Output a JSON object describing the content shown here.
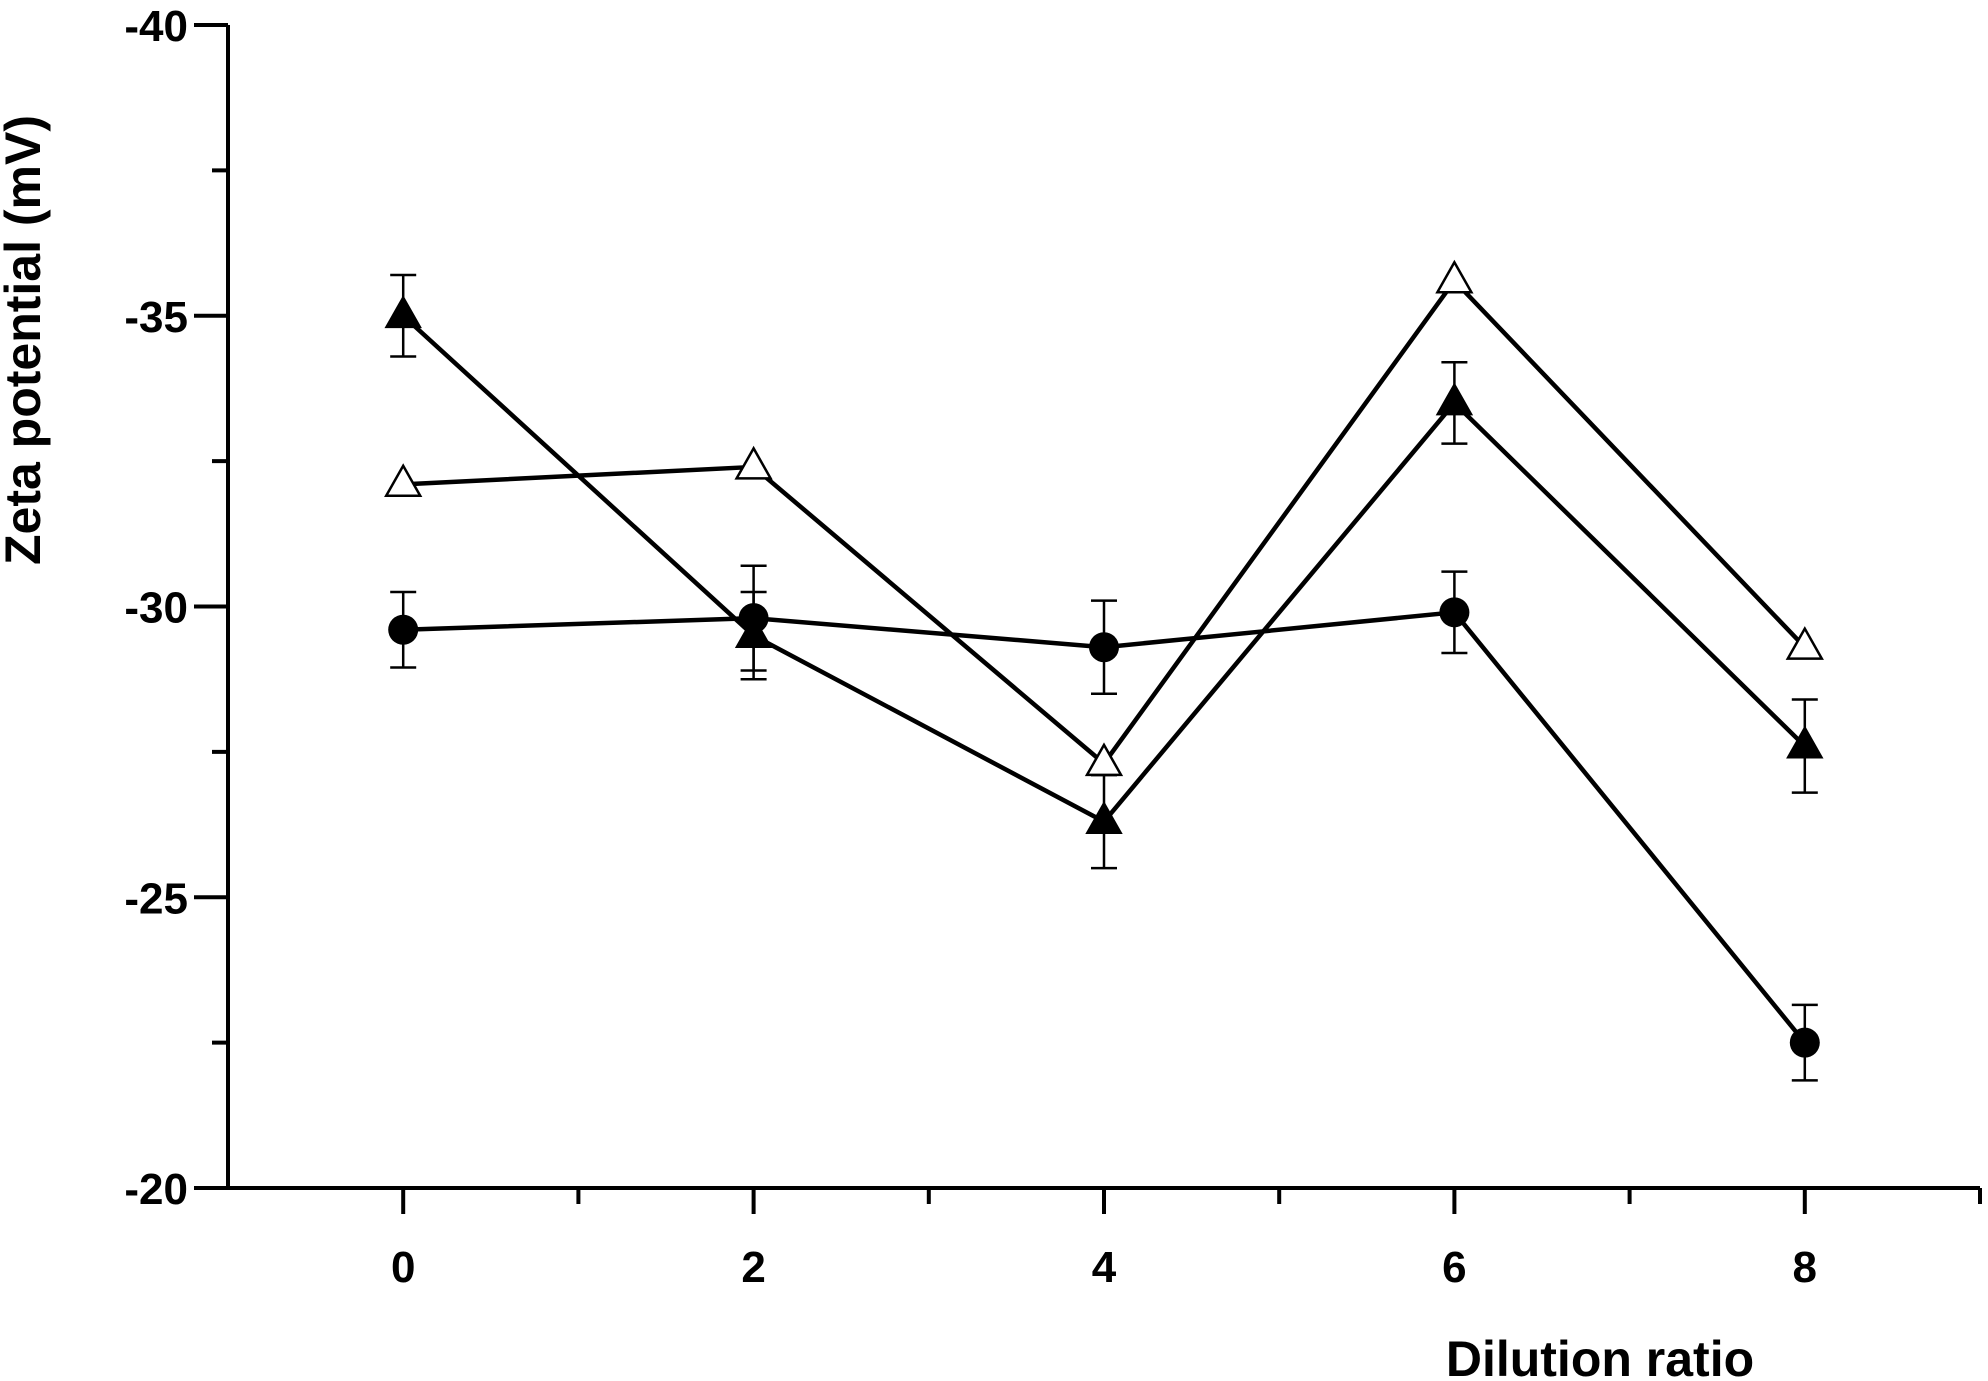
{
  "chart_data": {
    "type": "line",
    "title": "",
    "xlabel": "Dilution ratio",
    "ylabel": "Zeta potential (mV)",
    "x": [
      0,
      2,
      4,
      6,
      8
    ],
    "xlim": [
      -1,
      9
    ],
    "ylim": [
      -20,
      -40
    ],
    "x_ticks": [
      0,
      2,
      4,
      6,
      8
    ],
    "x_tick_labels": [
      "0",
      "2",
      "4",
      "6",
      "8"
    ],
    "y_ticks": [
      -40,
      -35,
      -30,
      -25,
      -20
    ],
    "y_tick_labels": [
      "-40",
      "-35",
      "-30",
      "-25",
      "-20"
    ],
    "grid": false,
    "legend": "none",
    "series": [
      {
        "name": "filled circles",
        "marker": "circle-filled",
        "values": [
          -29.6,
          -29.8,
          -29.3,
          -29.9,
          -22.5
        ],
        "errors": [
          0.65,
          0.9,
          0.8,
          0.7,
          0.65
        ]
      },
      {
        "name": "filled triangles",
        "marker": "triangle-filled",
        "values": [
          -35.0,
          -29.5,
          -26.3,
          -33.5,
          -27.6
        ],
        "errors": [
          0.7,
          0.75,
          0.8,
          0.7,
          0.8
        ]
      },
      {
        "name": "open triangles",
        "marker": "triangle-open",
        "values": [
          -32.1,
          -32.4,
          -27.3,
          -35.6,
          -29.3
        ],
        "errors": [
          0,
          0,
          0,
          0,
          0
        ]
      }
    ]
  }
}
